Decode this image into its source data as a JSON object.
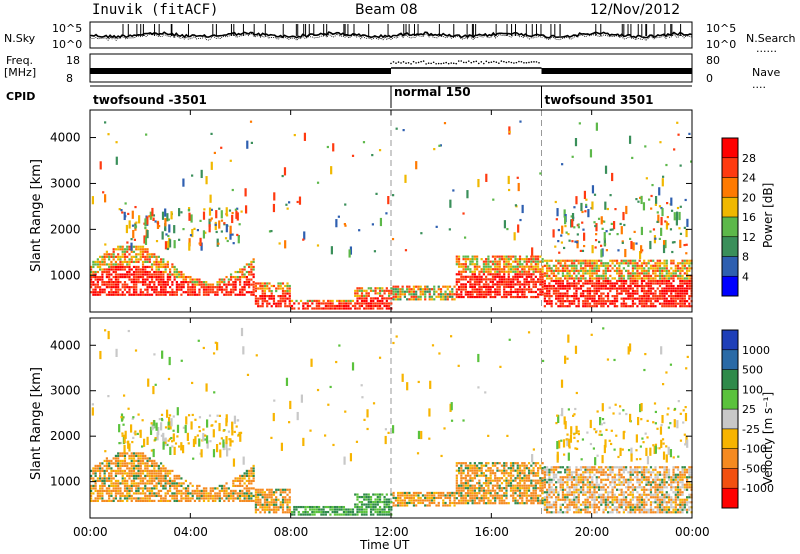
{
  "header": {
    "station": "Inuvik (fitACF)",
    "beam": "Beam 08",
    "date": "12/Nov/2012"
  },
  "summary": {
    "nsky_label": "N.Sky",
    "nsky_ticks": [
      "10^5",
      "10^0"
    ],
    "nsearch_label": "N.Search",
    "freq_label_1": "Freq.",
    "freq_label_2": "[MHz]",
    "freq_ticks": [
      "18",
      "8"
    ],
    "nave_label": "Nave",
    "nave_ticks": [
      "80",
      "0"
    ],
    "cpid_label": "CPID",
    "cpid_segments": [
      {
        "label": "twofsound -3501",
        "start_hour": 0,
        "end_hour": 12
      },
      {
        "label": "normal 150",
        "start_hour": 12,
        "end_hour": 18
      },
      {
        "label": "twofsound 3501",
        "start_hour": 18,
        "end_hour": 24
      }
    ]
  },
  "panels": {
    "ylabel": "Slant Range [km]",
    "xlabel": "Time UT",
    "x_ticks": [
      "00:00",
      "04:00",
      "08:00",
      "12:00",
      "16:00",
      "20:00",
      "00:00"
    ],
    "y_ticks": [
      "1000",
      "2000",
      "3000",
      "4000"
    ],
    "power_label": "Power [dB]",
    "power_ticks": [
      "4",
      "8",
      "12",
      "16",
      "20",
      "24",
      "28"
    ],
    "power_colors": [
      "#0000ff",
      "#2e5fb0",
      "#3a8f5a",
      "#5db84a",
      "#f0b800",
      "#ff7a00",
      "#ff3a10",
      "#ff0000"
    ],
    "velocity_label": "Velocity [m s⁻¹]",
    "velocity_ticks": [
      "1000",
      "500",
      "100",
      "25",
      "-25",
      "-100",
      "-500",
      "-1000"
    ],
    "velocity_colors": [
      "#1f3fb8",
      "#2a6aa6",
      "#2f8a4a",
      "#5ac23c",
      "#c8c8c8",
      "#f7b400",
      "#f58a20",
      "#f25010",
      "#ff0000"
    ]
  },
  "chart_data": {
    "type": "heatmap",
    "x_range_hours": [
      0,
      24
    ],
    "y_range_km": [
      200,
      4600
    ],
    "mode_change_hours": [
      12,
      18
    ]
  }
}
